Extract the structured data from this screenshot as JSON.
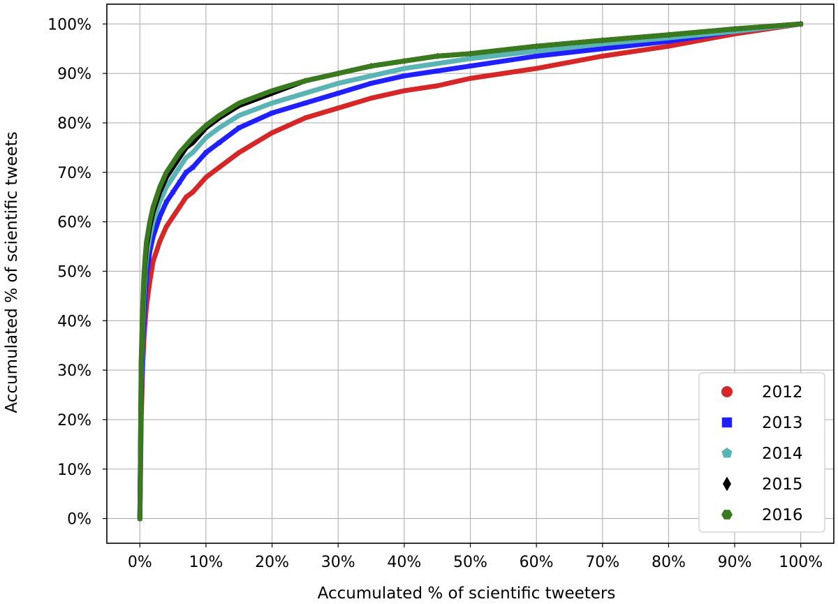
{
  "chart_data": {
    "type": "line",
    "xlabel": "Accumulated % of scientific tweeters",
    "ylabel": "Accumulated % of scientific tweets",
    "xlim": [
      -5,
      105
    ],
    "ylim": [
      -5,
      104
    ],
    "x_ticks": [
      "0%",
      "10%",
      "20%",
      "30%",
      "40%",
      "50%",
      "60%",
      "70%",
      "80%",
      "90%",
      "100%"
    ],
    "y_ticks": [
      "0%",
      "10%",
      "20%",
      "30%",
      "40%",
      "50%",
      "60%",
      "70%",
      "80%",
      "90%",
      "100%"
    ],
    "x_tick_values": [
      0,
      10,
      20,
      30,
      40,
      50,
      60,
      70,
      80,
      90,
      100
    ],
    "y_tick_values": [
      0,
      10,
      20,
      30,
      40,
      50,
      60,
      70,
      80,
      90,
      100
    ],
    "grid": true,
    "legend_position": "bottom-right",
    "series": [
      {
        "name": "2012",
        "color": "#d62728",
        "marker": "circle",
        "x": [
          0,
          0.2,
          0.4,
          0.6,
          0.8,
          1,
          1.5,
          2,
          3,
          4,
          5,
          6,
          7,
          8,
          10,
          12,
          15,
          20,
          25,
          30,
          35,
          40,
          45,
          50,
          60,
          70,
          80,
          90,
          100
        ],
        "y": [
          0,
          20,
          30,
          36,
          40,
          43,
          48,
          52,
          56,
          59,
          61,
          63,
          65,
          66,
          69,
          71,
          74,
          78,
          81,
          83,
          85,
          86.5,
          87.5,
          89,
          91,
          93.5,
          95.5,
          98,
          100
        ]
      },
      {
        "name": "2013",
        "color": "#1f1fff",
        "marker": "square",
        "x": [
          0,
          0.2,
          0.4,
          0.6,
          0.8,
          1,
          1.5,
          2,
          3,
          4,
          5,
          6,
          7,
          8,
          10,
          12,
          15,
          20,
          25,
          30,
          35,
          40,
          45,
          50,
          60,
          70,
          80,
          90,
          100
        ],
        "y": [
          0,
          24,
          34,
          40,
          45,
          49,
          54,
          57,
          61,
          64,
          66,
          68,
          70,
          71,
          74,
          76,
          79,
          82,
          84,
          86,
          88,
          89.5,
          90.5,
          91.5,
          93.5,
          95,
          96.5,
          98.5,
          100
        ]
      },
      {
        "name": "2014",
        "color": "#5ab4b4",
        "marker": "pentagon",
        "x": [
          0,
          0.2,
          0.4,
          0.6,
          0.8,
          1,
          1.5,
          2,
          3,
          4,
          5,
          6,
          7,
          8,
          10,
          12,
          15,
          20,
          25,
          30,
          35,
          40,
          45,
          50,
          60,
          70,
          80,
          90,
          100
        ],
        "y": [
          0,
          28,
          38,
          45,
          50,
          53,
          57,
          60,
          64,
          67,
          69,
          71,
          73,
          74,
          77,
          79,
          81.5,
          84,
          86,
          88,
          89.5,
          91,
          92,
          93,
          94.5,
          96,
          97.2,
          98.5,
          100
        ]
      },
      {
        "name": "2015",
        "color": "#000000",
        "marker": "diamond",
        "x": [
          0,
          0.2,
          0.4,
          0.6,
          0.8,
          1,
          1.5,
          2,
          3,
          4,
          5,
          6,
          7,
          8,
          10,
          12,
          15,
          20,
          25,
          30,
          35,
          40,
          45,
          50,
          60,
          70,
          80,
          90,
          100
        ],
        "y": [
          0,
          31,
          41,
          48,
          52,
          55,
          59,
          62,
          66,
          69,
          71,
          73,
          75,
          76,
          79,
          81,
          83.5,
          86,
          88.5,
          90,
          91.5,
          92.5,
          93.5,
          94,
          95.5,
          96.7,
          97.8,
          99,
          100
        ]
      },
      {
        "name": "2016",
        "color": "#3a7a1f",
        "marker": "hexagon",
        "x": [
          0,
          0.2,
          0.4,
          0.6,
          0.8,
          1,
          1.5,
          2,
          3,
          4,
          5,
          6,
          7,
          8,
          10,
          12,
          15,
          20,
          25,
          30,
          35,
          40,
          45,
          50,
          60,
          70,
          80,
          90,
          100
        ],
        "y": [
          0,
          32,
          42,
          49,
          53,
          56,
          60,
          63,
          67,
          70,
          72,
          74,
          75.5,
          77,
          79.5,
          81.5,
          84,
          86.5,
          88.5,
          90,
          91.5,
          92.5,
          93.5,
          94,
          95.5,
          96.7,
          97.8,
          99,
          100
        ]
      }
    ]
  }
}
